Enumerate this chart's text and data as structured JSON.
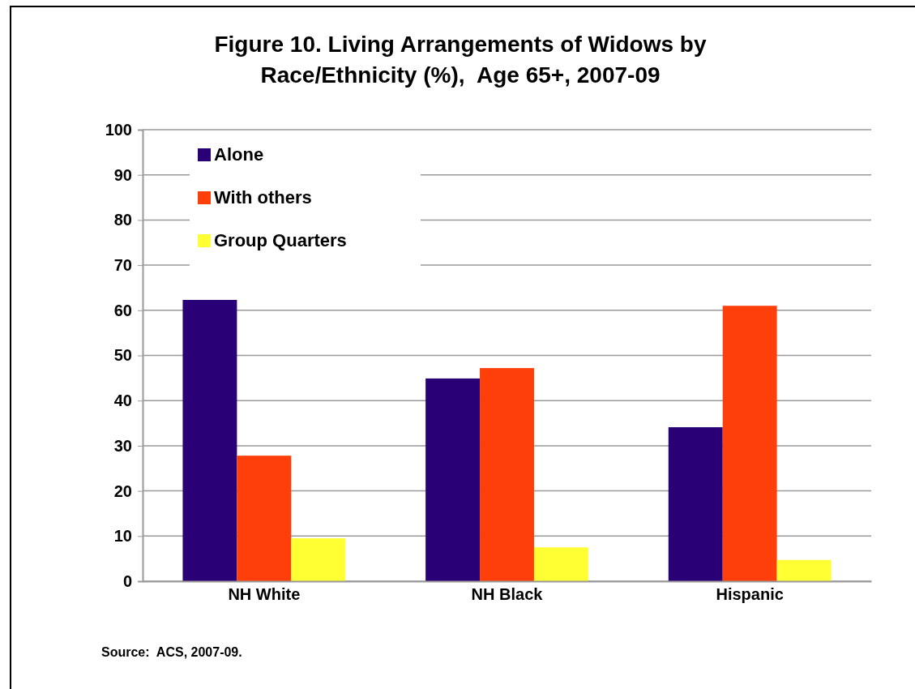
{
  "chart_data": {
    "type": "bar",
    "title": "Figure 10. Living Arrangements of Widows by Race/Ethnicity (%),  Age 65+, 2007-09",
    "categories": [
      "NH White",
      "NH Black",
      "Hispanic"
    ],
    "series": [
      {
        "name": "Alone",
        "color": "#2a0077",
        "values": [
          62.3,
          44.9,
          34.1
        ]
      },
      {
        "name": "With others",
        "color": "#ff3f0a",
        "values": [
          27.8,
          47.2,
          61.0
        ]
      },
      {
        "name": "Group Quarters",
        "color": "#ffff33",
        "values": [
          9.5,
          7.5,
          4.7
        ]
      }
    ],
    "ylim": [
      0,
      100
    ],
    "yticks": [
      0,
      10,
      20,
      30,
      40,
      50,
      60,
      70,
      80,
      90,
      100
    ],
    "grid": "y",
    "legend": "top left",
    "annotations": [
      "Source:  ACS, 2007-09."
    ]
  }
}
